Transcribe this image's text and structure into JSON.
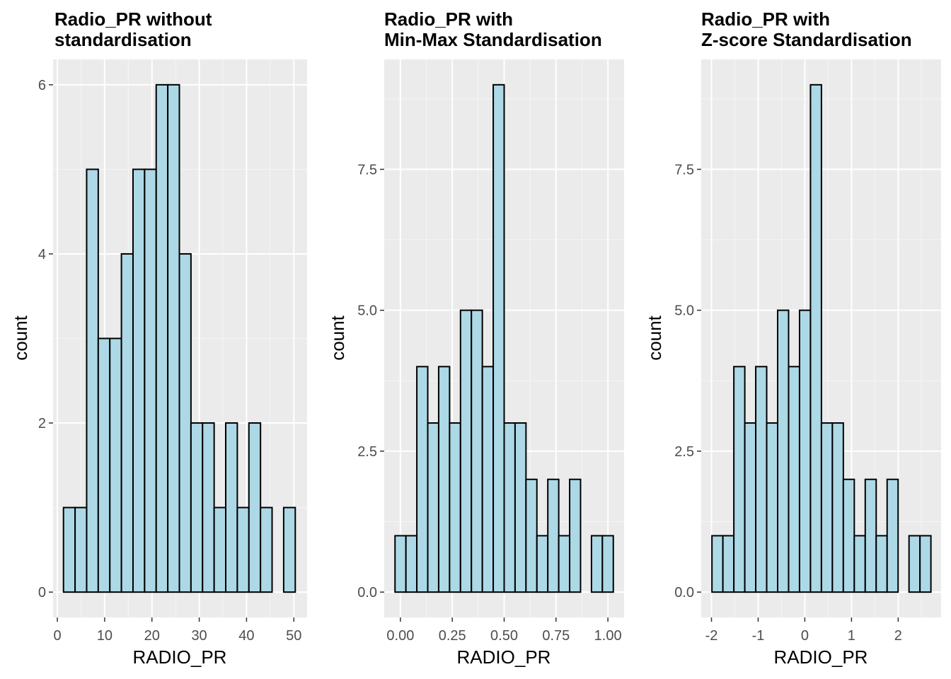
{
  "colors": {
    "panel_background": "#ebebeb",
    "grid_major": "#ffffff",
    "grid_minor": "#f5f5f5",
    "bar_fill": "#add8e6",
    "bar_outline": "#000000",
    "tick_text": "#4d4d4d",
    "tick_mark": "#333333"
  },
  "chart_data": [
    {
      "type": "bar",
      "title": [
        "Radio_PR without",
        "standardisation"
      ],
      "xlabel": "RADIO_PR",
      "ylabel": "count",
      "xlim": [
        -0.9,
        52.8
      ],
      "ylim": [
        -0.3,
        6.3
      ],
      "xticks": [
        0,
        10,
        20,
        30,
        40,
        50
      ],
      "xtick_labels": [
        "0",
        "10",
        "20",
        "30",
        "40",
        "50"
      ],
      "yticks": [
        0,
        2,
        4,
        6
      ],
      "ytick_labels": [
        "0",
        "2",
        "4",
        "6"
      ],
      "bin_start": 1.3,
      "bin_width": 2.45,
      "counts": [
        1,
        1,
        5,
        3,
        3,
        4,
        5,
        5,
        6,
        6,
        4,
        2,
        2,
        1,
        2,
        1,
        2,
        1,
        0,
        1
      ],
      "grid": true
    },
    {
      "type": "bar",
      "title": [
        "Radio_PR with",
        "Min-Max Standardisation"
      ],
      "xlabel": "RADIO_PR",
      "ylabel": "count",
      "xlim": [
        -0.078,
        1.078
      ],
      "ylim": [
        -0.45,
        9.45
      ],
      "xticks": [
        0,
        0.25,
        0.5,
        0.75,
        1.0
      ],
      "xtick_labels": [
        "0.00",
        "0.25",
        "0.50",
        "0.75",
        "1.00"
      ],
      "yticks": [
        0,
        2.5,
        5.0,
        7.5
      ],
      "ytick_labels": [
        "0.0",
        "2.5",
        "5.0",
        "7.5"
      ],
      "bin_start": -0.026,
      "bin_width": 0.0526,
      "counts": [
        1,
        1,
        4,
        3,
        4,
        3,
        5,
        5,
        4,
        9,
        3,
        3,
        2,
        1,
        2,
        1,
        2,
        0,
        1,
        1
      ],
      "grid": true
    },
    {
      "type": "bar",
      "title": [
        "Radio_PR with",
        "Z-score Standardisation"
      ],
      "xlabel": "RADIO_PR",
      "ylabel": "count",
      "xlim": [
        -2.22,
        2.92
      ],
      "ylim": [
        -0.45,
        9.45
      ],
      "xticks": [
        -2,
        -1,
        0,
        1,
        2
      ],
      "xtick_labels": [
        "-2",
        "-1",
        "0",
        "1",
        "2"
      ],
      "yticks": [
        0,
        2.5,
        5.0,
        7.5
      ],
      "ytick_labels": [
        "0.0",
        "2.5",
        "5.0",
        "7.5"
      ],
      "bin_start": -1.99,
      "bin_width": 0.2346,
      "counts": [
        1,
        1,
        4,
        3,
        4,
        3,
        5,
        4,
        5,
        9,
        3,
        3,
        2,
        1,
        2,
        1,
        2,
        0,
        1,
        1
      ],
      "grid": true
    }
  ]
}
